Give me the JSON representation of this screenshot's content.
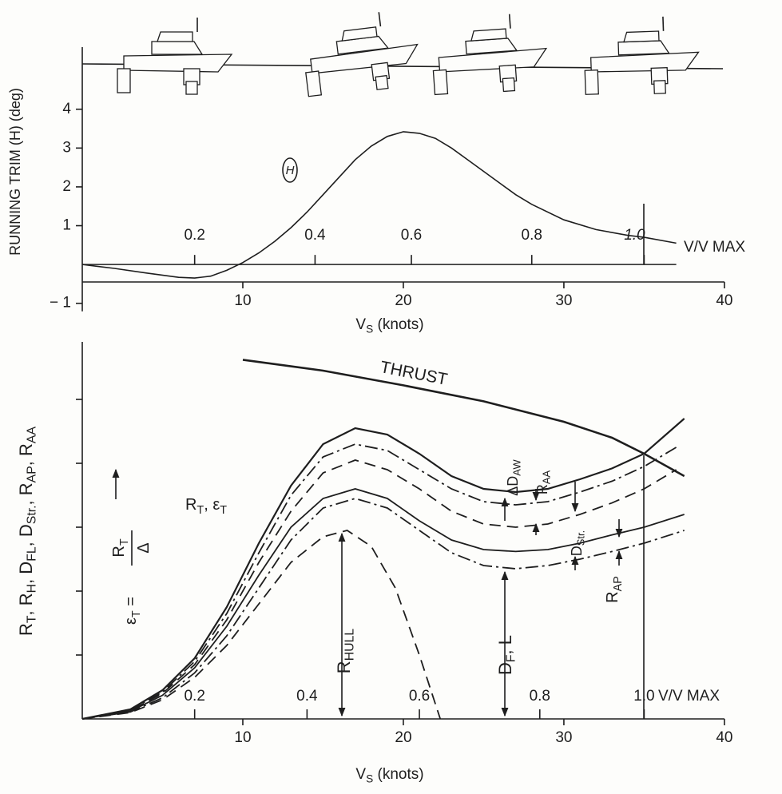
{
  "chart_data": [
    {
      "type": "line",
      "y_label": [
        {
          "text": "RUNNING TRIM (H) (deg)"
        }
      ],
      "x_label": [
        {
          "text": "V",
          "sub": "S"
        },
        {
          "text": " (knots)"
        }
      ],
      "curve_label": "H",
      "x2_label": "V/V MAX",
      "xlim": [
        0,
        41
      ],
      "ylim": [
        -0.45,
        5.6
      ],
      "xticks": [
        10,
        20,
        30,
        40
      ],
      "yticks": [
        {
          "value": -1,
          "label": "− 1"
        },
        1,
        2,
        3,
        4
      ],
      "x2ticks": [
        {
          "value": 7,
          "label": "0.2"
        },
        {
          "value": 14.5,
          "label": "0.4"
        },
        {
          "value": 20.5,
          "label": "0.6"
        },
        {
          "value": 28,
          "label": "0.8"
        },
        {
          "value": 35,
          "label": "1.0"
        }
      ],
      "series": [
        {
          "color": "#1e1e1e",
          "dash": "solid",
          "x": [
            0,
            2,
            4,
            6,
            7,
            8,
            9,
            10,
            11,
            12,
            13,
            14,
            15,
            16,
            17,
            18,
            19,
            20,
            21,
            22,
            23,
            24,
            25,
            26,
            27,
            28,
            30,
            32,
            34,
            35,
            37
          ],
          "values": [
            0,
            -0.1,
            -0.22,
            -0.33,
            -0.35,
            -0.3,
            -0.15,
            0.05,
            0.3,
            0.6,
            0.95,
            1.35,
            1.8,
            2.25,
            2.7,
            3.05,
            3.3,
            3.42,
            3.38,
            3.25,
            3.0,
            2.7,
            2.4,
            2.1,
            1.8,
            1.55,
            1.15,
            0.9,
            0.75,
            0.7,
            0.55
          ]
        }
      ]
    },
    {
      "type": "line",
      "y_label": [
        {
          "text": "R",
          "sub": "T"
        },
        {
          "text": ", R",
          "sub": "H"
        },
        {
          "text": ", D",
          "sub": "FL"
        },
        {
          "text": ", D",
          "sub": "Str."
        },
        {
          "text": ", R",
          "sub": "AP"
        },
        {
          "text": ", R",
          "sub": "AA"
        }
      ],
      "x_label": [
        {
          "text": "V",
          "sub": "S"
        },
        {
          "text": " (knots)"
        }
      ],
      "x2_label": "V/V MAX",
      "thrust_label": [
        {
          "text": "THRUST"
        }
      ],
      "rt_label": [
        {
          "text": "R",
          "sub": "T"
        },
        {
          "text": ", ε",
          "sub": "T"
        }
      ],
      "equation": {
        "lhs": [
          {
            "text": "ε",
            "sub": "T"
          },
          {
            "text": " ="
          }
        ],
        "num": [
          {
            "text": "R",
            "sub": "T"
          }
        ],
        "den": [
          {
            "text": "Δ"
          }
        ]
      },
      "daw_label": [
        {
          "text": "ΔD",
          "sub": "AW"
        }
      ],
      "raa_label": [
        {
          "text": "R",
          "sub": "AA"
        }
      ],
      "dstr_label": [
        {
          "text": "D",
          "sub": "Str."
        }
      ],
      "rap_label": [
        {
          "text": "R",
          "sub": "AP"
        }
      ],
      "rhull_label": [
        {
          "text": "R",
          "sub": "HULL"
        }
      ],
      "dfl_label": [
        {
          "text": "D",
          "sub": "F"
        },
        {
          "text": ", L"
        }
      ],
      "xlim": [
        0,
        41
      ],
      "ylim": [
        0,
        5.9
      ],
      "xticks": [
        10,
        20,
        30,
        40
      ],
      "yticks": [
        1,
        2,
        3,
        4,
        5
      ],
      "ytick_labels": false,
      "x2ticks": [
        {
          "value": 7,
          "label": "0.2"
        },
        {
          "value": 14,
          "label": "0.4"
        },
        {
          "value": 21,
          "label": "0.6"
        },
        {
          "value": 28.5,
          "label": "0.8"
        },
        {
          "value": 35,
          "label": "1.0"
        }
      ],
      "series": [
        {
          "color": "#1e1e1e",
          "dash": "solid",
          "width": 2.6,
          "x": [
            10,
            15,
            20,
            25,
            30,
            33,
            35,
            37.5
          ],
          "values": [
            5.62,
            5.45,
            5.22,
            4.97,
            4.65,
            4.4,
            4.15,
            3.8
          ]
        },
        {
          "color": "#1e1e1e",
          "dash": "solid",
          "width": 2.2,
          "x": [
            0,
            3,
            5,
            7,
            9,
            11,
            13,
            15,
            17,
            19,
            21,
            23,
            25,
            27,
            29,
            31,
            33,
            35,
            37.5
          ],
          "values": [
            0,
            0.15,
            0.45,
            0.95,
            1.75,
            2.75,
            3.65,
            4.3,
            4.55,
            4.45,
            4.15,
            3.8,
            3.6,
            3.55,
            3.6,
            3.75,
            3.92,
            4.15,
            4.7
          ]
        },
        {
          "color": "#1e1e1e",
          "dash": "dashdot",
          "width": 1.8,
          "x": [
            0,
            3,
            5,
            7,
            9,
            11,
            13,
            15,
            17,
            19,
            21,
            23,
            25,
            27,
            29,
            31,
            33,
            35,
            37
          ],
          "values": [
            0,
            0.14,
            0.42,
            0.9,
            1.65,
            2.6,
            3.5,
            4.1,
            4.3,
            4.2,
            3.9,
            3.6,
            3.4,
            3.35,
            3.4,
            3.55,
            3.72,
            3.95,
            4.25
          ]
        },
        {
          "color": "#1e1e1e",
          "dash": "dash",
          "width": 1.8,
          "x": [
            0,
            3,
            5,
            7,
            9,
            11,
            13,
            15,
            17,
            19,
            21,
            23,
            25,
            27,
            29,
            31,
            33,
            35,
            37
          ],
          "values": [
            0,
            0.13,
            0.4,
            0.85,
            1.55,
            2.45,
            3.25,
            3.85,
            4.05,
            3.9,
            3.6,
            3.25,
            3.05,
            3.0,
            3.05,
            3.2,
            3.38,
            3.6,
            3.9
          ]
        },
        {
          "color": "#1e1e1e",
          "dash": "solid",
          "width": 1.8,
          "x": [
            0,
            3,
            5,
            7,
            9,
            11,
            13,
            15,
            17,
            19,
            21,
            23,
            25,
            27,
            29,
            31,
            33,
            35,
            37.5
          ],
          "values": [
            0,
            0.12,
            0.37,
            0.8,
            1.45,
            2.25,
            3.0,
            3.45,
            3.6,
            3.45,
            3.1,
            2.8,
            2.65,
            2.62,
            2.65,
            2.75,
            2.88,
            3.0,
            3.2
          ]
        },
        {
          "color": "#1e1e1e",
          "dash": "dashdot",
          "width": 1.8,
          "x": [
            0,
            3,
            5,
            7,
            9,
            11,
            13,
            15,
            17,
            19,
            21,
            23,
            25,
            27,
            29,
            31,
            33,
            35,
            37.5
          ],
          "values": [
            0,
            0.11,
            0.33,
            0.72,
            1.3,
            2.05,
            2.8,
            3.3,
            3.45,
            3.3,
            2.95,
            2.6,
            2.4,
            2.35,
            2.4,
            2.5,
            2.62,
            2.75,
            2.95
          ]
        },
        {
          "color": "#1e1e1e",
          "dash": "dash",
          "width": 1.8,
          "x": [
            0,
            3,
            5,
            7,
            9,
            11,
            13,
            15,
            16.5,
            18,
            19.5,
            21,
            22.3
          ],
          "values": [
            0,
            0.1,
            0.3,
            0.65,
            1.15,
            1.8,
            2.45,
            2.85,
            2.95,
            2.7,
            2.05,
            1.0,
            0
          ]
        }
      ]
    }
  ]
}
